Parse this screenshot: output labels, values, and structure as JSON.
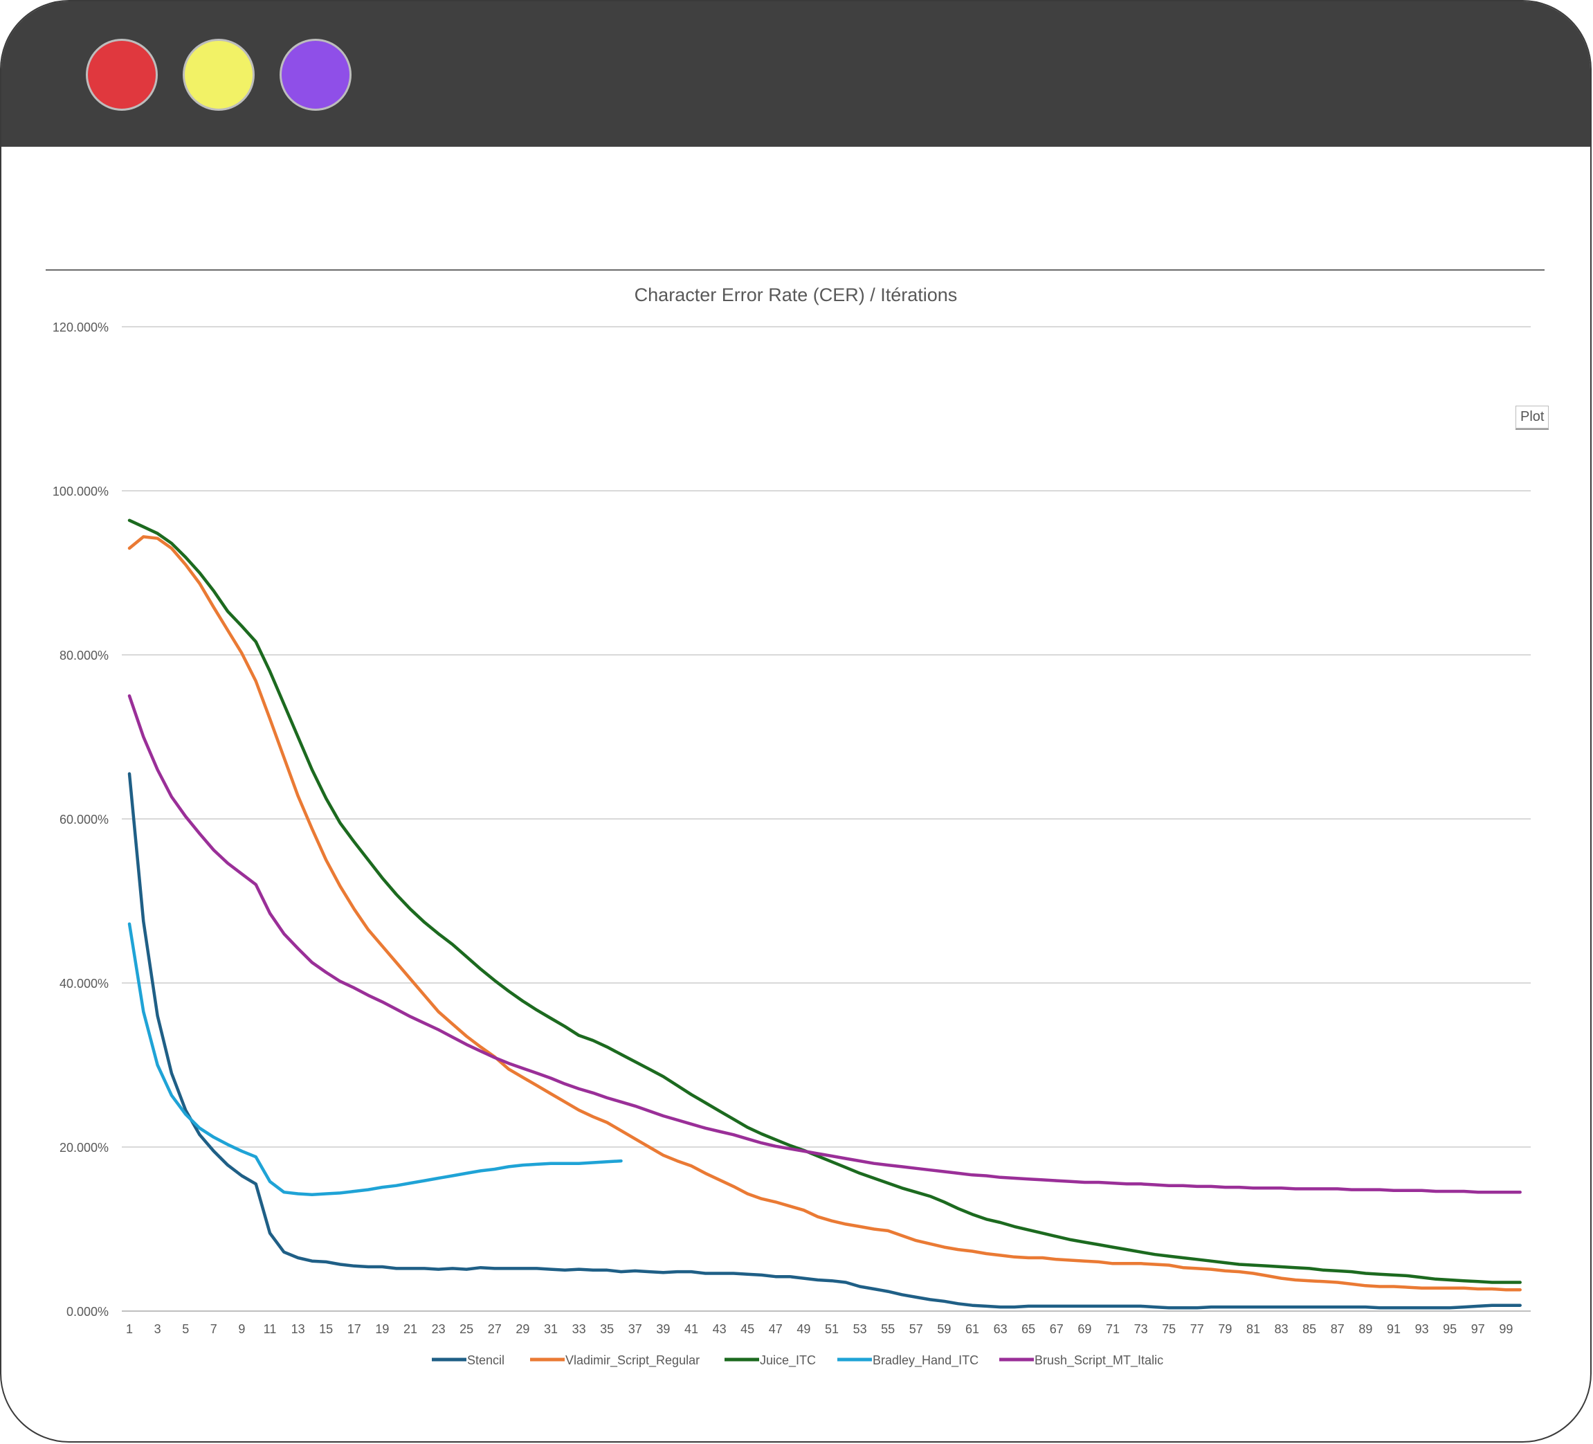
{
  "window": {
    "colors": {
      "titlebar": "#404040",
      "red": "#e0383e",
      "yellow": "#f2f266",
      "purple": "#8f4fe8"
    }
  },
  "tooltip": {
    "text": "Plot"
  },
  "chart_data": {
    "type": "line",
    "title": "Character Error Rate (CER) / Itérations",
    "xlabel": "",
    "ylabel": "",
    "ylim": [
      0,
      120
    ],
    "y_ticks": [
      "0.000%",
      "20.000%",
      "40.000%",
      "60.000%",
      "80.000%",
      "100.000%",
      "120.000%"
    ],
    "x_ticks": [
      1,
      3,
      5,
      7,
      9,
      11,
      13,
      15,
      17,
      19,
      21,
      23,
      25,
      27,
      29,
      31,
      33,
      35,
      37,
      39,
      41,
      43,
      45,
      47,
      49,
      51,
      53,
      55,
      57,
      59,
      61,
      63,
      65,
      67,
      69,
      71,
      73,
      75,
      77,
      79,
      81,
      83,
      85,
      87,
      89,
      91,
      93,
      95,
      97,
      99
    ],
    "x_count": 100,
    "grid": true,
    "legend": "bottom",
    "series": [
      {
        "name": "Stencil",
        "color": "#1f5f86",
        "values": [
          65.5,
          47.5,
          36.0,
          29.0,
          24.5,
          21.5,
          19.5,
          17.8,
          16.5,
          15.5,
          9.5,
          7.2,
          6.5,
          6.1,
          6.0,
          5.7,
          5.5,
          5.4,
          5.4,
          5.2,
          5.2,
          5.2,
          5.1,
          5.2,
          5.1,
          5.3,
          5.2,
          5.2,
          5.2,
          5.2,
          5.1,
          5.0,
          5.1,
          5.0,
          5.0,
          4.8,
          4.9,
          4.8,
          4.7,
          4.8,
          4.8,
          4.6,
          4.6,
          4.6,
          4.5,
          4.4,
          4.2,
          4.2,
          4.0,
          3.8,
          3.7,
          3.5,
          3.0,
          2.7,
          2.4,
          2.0,
          1.7,
          1.4,
          1.2,
          0.9,
          0.7,
          0.6,
          0.5,
          0.5,
          0.6,
          0.6,
          0.6,
          0.6,
          0.6,
          0.6,
          0.6,
          0.6,
          0.6,
          0.5,
          0.4,
          0.4,
          0.4,
          0.5,
          0.5,
          0.5,
          0.5,
          0.5,
          0.5,
          0.5,
          0.5,
          0.5,
          0.5,
          0.5,
          0.5,
          0.4,
          0.4,
          0.4,
          0.4,
          0.4,
          0.4,
          0.5,
          0.6,
          0.7,
          0.7,
          0.7
        ]
      },
      {
        "name": "Vladimir_Script_Regular",
        "color": "#ea7a34",
        "values": [
          93.0,
          94.4,
          94.2,
          93.0,
          91.0,
          88.7,
          85.8,
          83.0,
          80.2,
          76.8,
          72.2,
          67.5,
          62.8,
          58.8,
          55.0,
          51.8,
          49.0,
          46.5,
          44.5,
          42.5,
          40.5,
          38.5,
          36.5,
          35.0,
          33.5,
          32.2,
          31.0,
          29.5,
          28.5,
          27.5,
          26.5,
          25.5,
          24.5,
          23.7,
          23.0,
          22.0,
          21.0,
          20.0,
          19.0,
          18.3,
          17.7,
          16.8,
          16.0,
          15.2,
          14.3,
          13.7,
          13.3,
          12.8,
          12.3,
          11.5,
          11.0,
          10.6,
          10.3,
          10.0,
          9.8,
          9.2,
          8.6,
          8.2,
          7.8,
          7.5,
          7.3,
          7.0,
          6.8,
          6.6,
          6.5,
          6.5,
          6.3,
          6.2,
          6.1,
          6.0,
          5.8,
          5.8,
          5.8,
          5.7,
          5.6,
          5.3,
          5.2,
          5.1,
          4.9,
          4.8,
          4.6,
          4.3,
          4.0,
          3.8,
          3.7,
          3.6,
          3.5,
          3.3,
          3.1,
          3.0,
          3.0,
          2.9,
          2.8,
          2.8,
          2.8,
          2.8,
          2.7,
          2.7,
          2.6,
          2.6
        ]
      },
      {
        "name": "Juice_ITC",
        "color": "#1c6a1f",
        "values": [
          96.4,
          95.6,
          94.8,
          93.6,
          91.9,
          90.0,
          87.8,
          85.3,
          83.5,
          81.6,
          78.0,
          74.0,
          70.0,
          66.0,
          62.5,
          59.5,
          57.2,
          55.0,
          52.8,
          50.8,
          49.0,
          47.4,
          46.0,
          44.7,
          43.2,
          41.7,
          40.3,
          39.0,
          37.8,
          36.7,
          35.7,
          34.7,
          33.6,
          33.0,
          32.2,
          31.3,
          30.4,
          29.5,
          28.6,
          27.5,
          26.4,
          25.4,
          24.4,
          23.4,
          22.4,
          21.6,
          20.9,
          20.2,
          19.6,
          18.9,
          18.2,
          17.5,
          16.8,
          16.2,
          15.6,
          15.0,
          14.5,
          14.0,
          13.3,
          12.5,
          11.8,
          11.2,
          10.8,
          10.3,
          9.9,
          9.5,
          9.1,
          8.7,
          8.4,
          8.1,
          7.8,
          7.5,
          7.2,
          6.9,
          6.7,
          6.5,
          6.3,
          6.1,
          5.9,
          5.7,
          5.6,
          5.5,
          5.4,
          5.3,
          5.2,
          5.0,
          4.9,
          4.8,
          4.6,
          4.5,
          4.4,
          4.3,
          4.1,
          3.9,
          3.8,
          3.7,
          3.6,
          3.5,
          3.5,
          3.5
        ]
      },
      {
        "name": "Bradley_Hand_ITC",
        "color": "#1fa3d6",
        "values": [
          47.2,
          36.5,
          30.0,
          26.3,
          24.0,
          22.3,
          21.2,
          20.3,
          19.5,
          18.8,
          15.8,
          14.5,
          14.3,
          14.2,
          14.3,
          14.4,
          14.6,
          14.8,
          15.1,
          15.3,
          15.6,
          15.9,
          16.2,
          16.5,
          16.8,
          17.1,
          17.3,
          17.6,
          17.8,
          17.9,
          18.0,
          18.0,
          18.0,
          18.1,
          18.2,
          18.3
        ]
      },
      {
        "name": "Brush_Script_MT_Italic",
        "color": "#9a2f98",
        "values": [
          75.0,
          70.0,
          66.0,
          62.7,
          60.3,
          58.2,
          56.2,
          54.6,
          53.3,
          52.0,
          48.5,
          46.0,
          44.2,
          42.5,
          41.3,
          40.2,
          39.4,
          38.5,
          37.7,
          36.8,
          35.9,
          35.1,
          34.3,
          33.4,
          32.5,
          31.7,
          30.9,
          30.2,
          29.6,
          29.0,
          28.4,
          27.7,
          27.1,
          26.6,
          26.0,
          25.5,
          25.0,
          24.4,
          23.8,
          23.3,
          22.8,
          22.3,
          21.9,
          21.5,
          21.0,
          20.5,
          20.1,
          19.8,
          19.5,
          19.2,
          18.9,
          18.6,
          18.3,
          18.0,
          17.8,
          17.6,
          17.4,
          17.2,
          17.0,
          16.8,
          16.6,
          16.5,
          16.3,
          16.2,
          16.1,
          16.0,
          15.9,
          15.8,
          15.7,
          15.7,
          15.6,
          15.5,
          15.5,
          15.4,
          15.3,
          15.3,
          15.2,
          15.2,
          15.1,
          15.1,
          15.0,
          15.0,
          15.0,
          14.9,
          14.9,
          14.9,
          14.9,
          14.8,
          14.8,
          14.8,
          14.7,
          14.7,
          14.7,
          14.6,
          14.6,
          14.6,
          14.5,
          14.5,
          14.5,
          14.5
        ]
      }
    ]
  }
}
